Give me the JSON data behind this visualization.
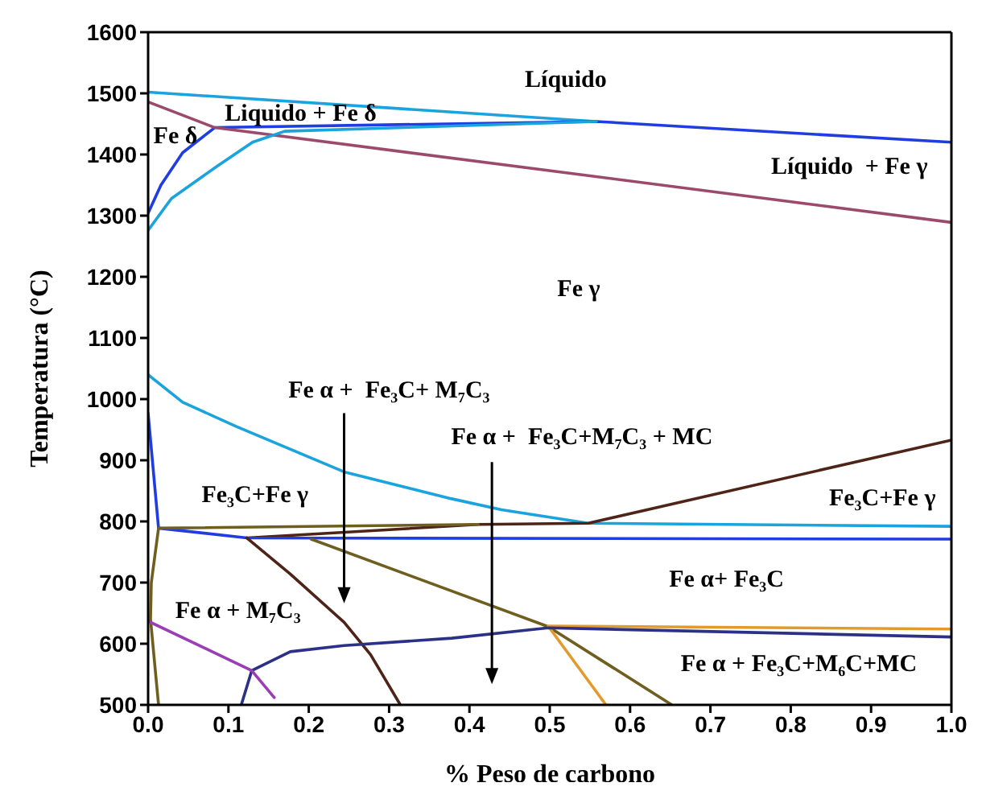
{
  "chart_data": {
    "type": "line",
    "xlabel": "% Peso de carbono",
    "ylabel": "Temperatura (°C)",
    "xlim": [
      0,
      1
    ],
    "ylim": [
      500,
      1600
    ],
    "xticks": [
      {
        "value": 0,
        "label": "0.0"
      },
      0.1,
      0.2,
      0.3,
      0.4,
      0.5,
      0.6,
      0.7,
      0.8,
      0.9,
      {
        "value": 1,
        "label": "1.0"
      }
    ],
    "yticks": [
      500,
      600,
      700,
      800,
      900,
      1000,
      1100,
      1200,
      1300,
      1400,
      1500,
      1600
    ],
    "series": [
      {
        "color": "#1aa3dc",
        "x": [
          0,
          0.558
        ],
        "values": [
          1502,
          1454
        ]
      },
      {
        "color": "#1f3de0",
        "x": [
          0,
          0.016,
          0.043,
          0.083,
          0.558,
          1.0
        ],
        "values": [
          1304,
          1350,
          1403,
          1444,
          1454,
          1420
        ]
      },
      {
        "color": "#9c4a6c",
        "x": [
          0,
          0.083,
          1.0
        ],
        "values": [
          1486,
          1444,
          1289
        ]
      },
      {
        "color": "#1aa3dc",
        "x": [
          0,
          0.029,
          0.086,
          0.13,
          0.17,
          0.558
        ],
        "values": [
          1276,
          1328,
          1381,
          1420,
          1438,
          1454
        ]
      },
      {
        "color": "#1aa3dc",
        "x": [
          0,
          0.043,
          0.11,
          0.244,
          0.378,
          0.44,
          0.548,
          1.0
        ],
        "values": [
          1040,
          995,
          955,
          881,
          837,
          819,
          797,
          792
        ]
      },
      {
        "color": "#4f2418",
        "x": [
          0.123,
          0.411,
          0.548,
          1.0
        ],
        "values": [
          773,
          795,
          797,
          933
        ]
      },
      {
        "color": "#1f3de0",
        "x": [
          0,
          0.013,
          0.123,
          1.0
        ],
        "values": [
          977,
          789,
          773,
          771
        ]
      },
      {
        "color": "#6e5f1f",
        "x": [
          0.013,
          0.411
        ],
        "values": [
          789,
          795
        ]
      },
      {
        "color": "#6e5f1f",
        "x": [
          0.013,
          0.004,
          0.003,
          0.013
        ],
        "values": [
          789,
          700,
          640,
          500
        ]
      },
      {
        "color": "#6e5f1f",
        "x": [
          0.203,
          0.498,
          0.652
        ],
        "values": [
          771,
          628,
          500
        ]
      },
      {
        "color": "#4f2418",
        "x": [
          0.123,
          0.177,
          0.244,
          0.277,
          0.314
        ],
        "values": [
          773,
          714,
          635,
          582,
          500
        ]
      },
      {
        "color": "#e39a2d",
        "x": [
          0.57,
          0.498,
          1.0
        ],
        "values": [
          500,
          629,
          624
        ]
      },
      {
        "color": "#2b3187",
        "x": [
          0.116,
          0.129,
          0.177,
          0.244,
          0.378,
          0.498,
          1.0
        ],
        "values": [
          500,
          556,
          587,
          597,
          609,
          626,
          611
        ]
      },
      {
        "color": "#9b3db5",
        "x": [
          0,
          0.129,
          0.157
        ],
        "values": [
          637,
          556,
          512
        ]
      }
    ],
    "annotations": [
      "Líquido",
      "Liquido + Fe δ",
      "Fe δ",
      "Líquido  + Fe γ",
      "Fe γ",
      "Fe α +  Fe₃C+ M₇C₃",
      "Fe α +  Fe₃C+M₇C₃ + MC",
      "Fe₃C+Fe γ",
      "Fe₃C+Fe γ",
      "Fe α+ Fe₃C",
      "Fe α + M₇C₃",
      "Fe α + Fe₃C+M₆C+MC"
    ]
  }
}
